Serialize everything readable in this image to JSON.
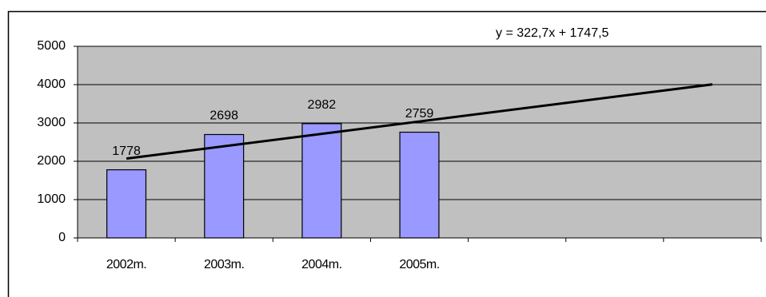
{
  "chart_data": {
    "type": "bar",
    "categories": [
      "2002m.",
      "2003m.",
      "2004m.",
      "2005m.",
      null,
      null,
      null
    ],
    "values": [
      1778,
      2698,
      2982,
      2759,
      null,
      null,
      null
    ],
    "color": "#9999ff",
    "ylim": [
      0,
      5000
    ],
    "yticks": [
      0,
      1000,
      2000,
      3000,
      4000,
      5000
    ],
    "grid": true,
    "trendline": {
      "label": "y = 322,7x + 1747,5",
      "slope": 322.7,
      "intercept": 1747.5
    }
  }
}
